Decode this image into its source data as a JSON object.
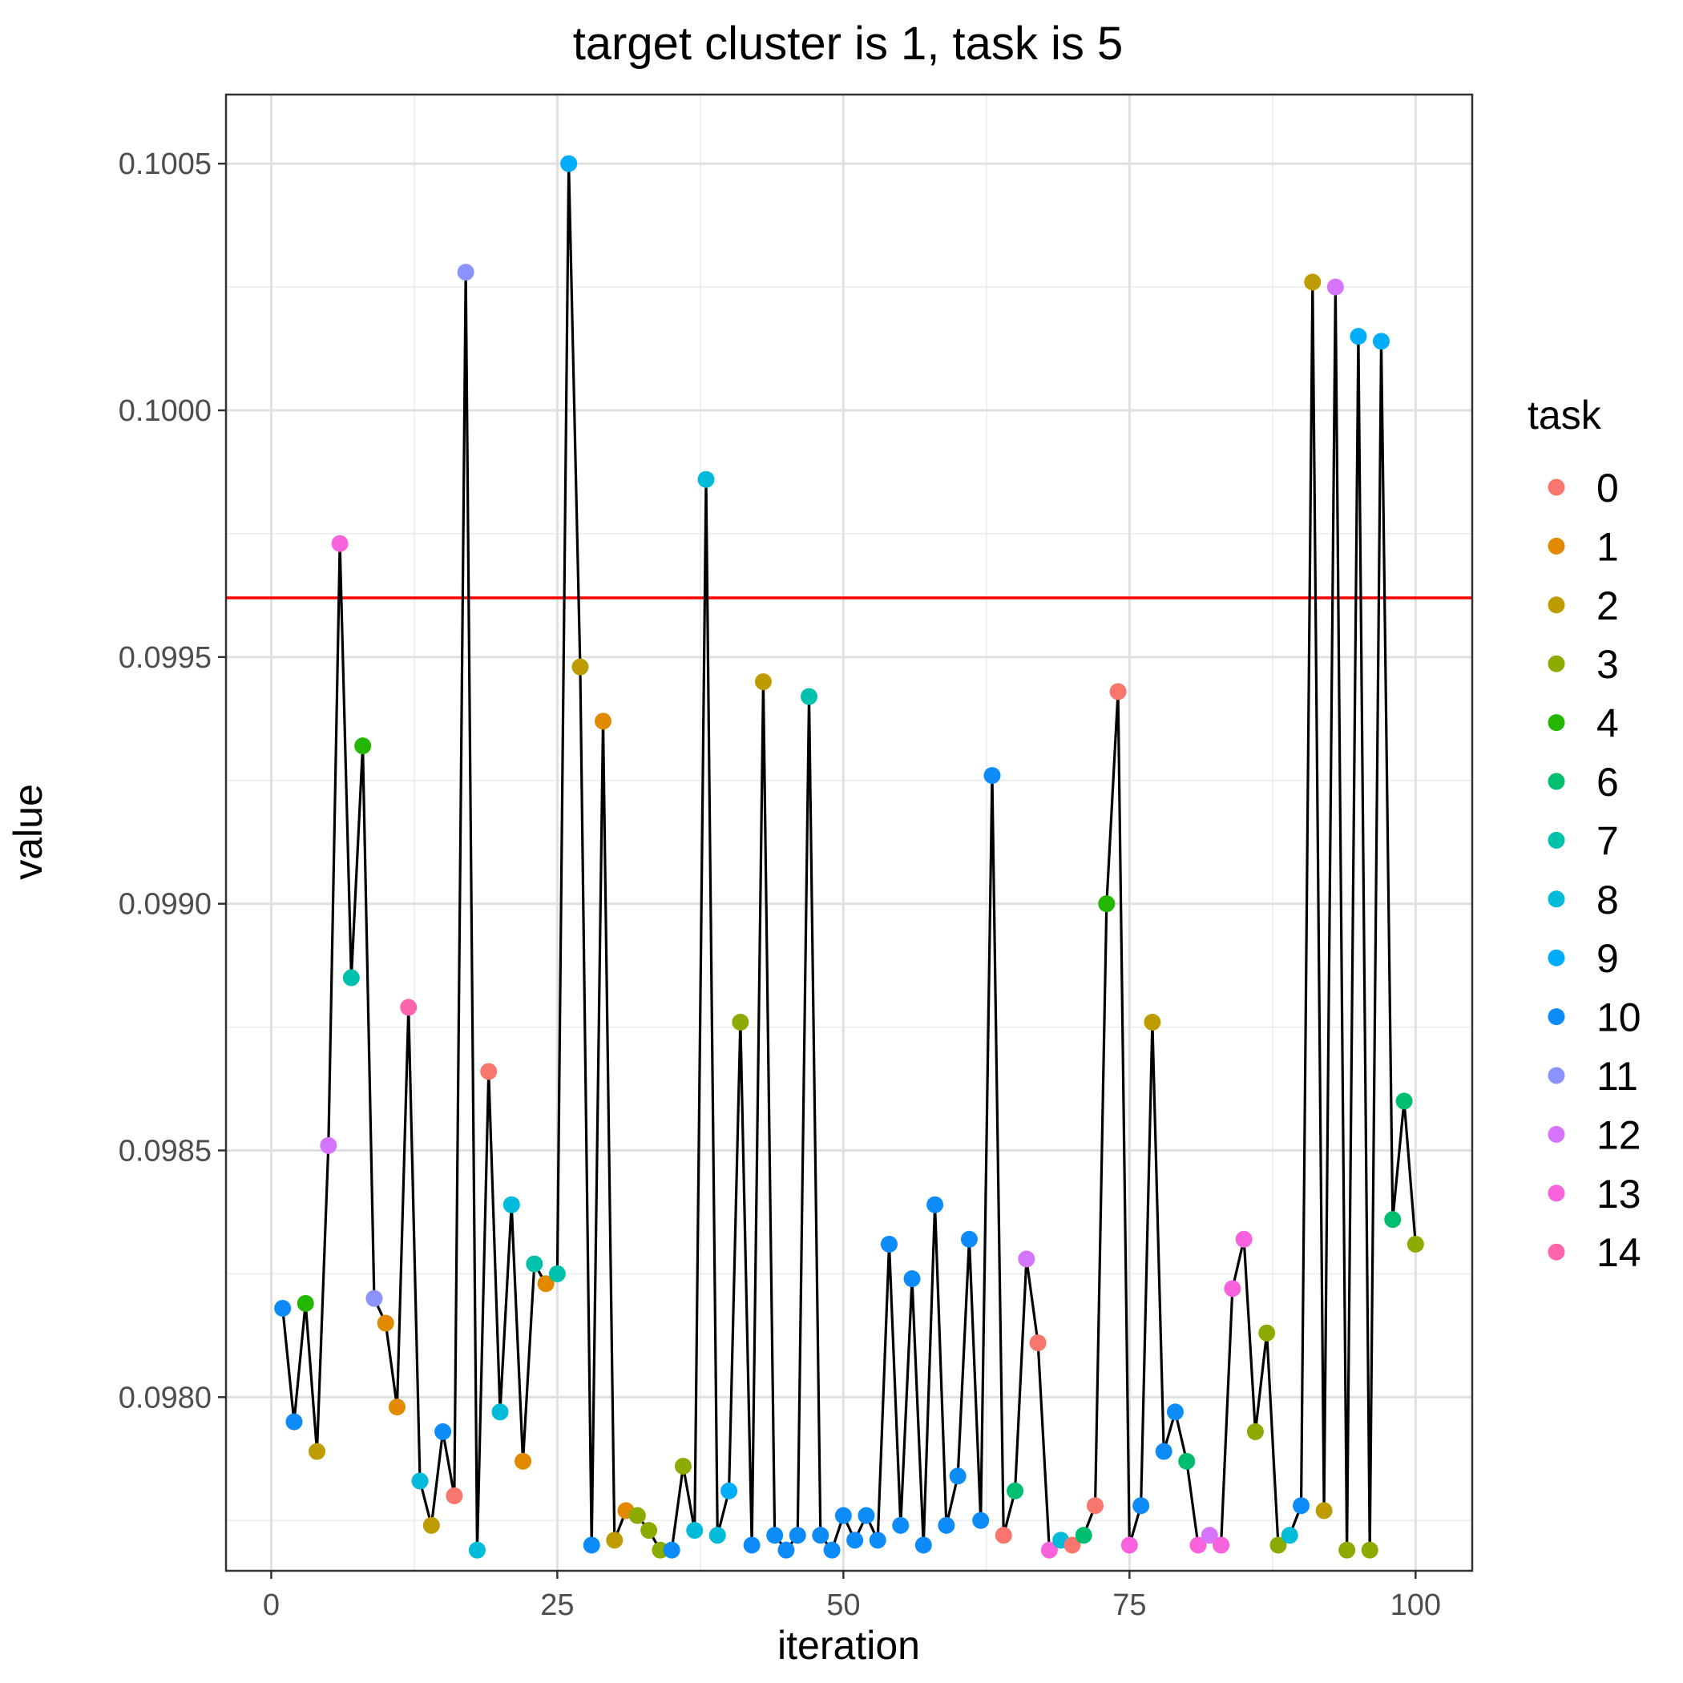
{
  "chart_data": {
    "type": "scatter",
    "title": "target cluster is 1, task is 5",
    "xlabel": "iteration",
    "ylabel": "value",
    "xlim": [
      -3.95,
      104.95
    ],
    "ylim": [
      0.097648,
      0.10064
    ],
    "x_ticks": [
      0,
      25,
      50,
      75,
      100
    ],
    "x_tick_labels": [
      "0",
      "25",
      "50",
      "75",
      "100"
    ],
    "y_ticks": [
      0.098,
      0.0985,
      0.099,
      0.0995,
      0.1,
      0.1005
    ],
    "y_tick_labels": [
      "0.0980",
      "0.0985",
      "0.0990",
      "0.0995",
      "0.1000",
      "0.1005"
    ],
    "grid": true,
    "reference_line": {
      "y": 0.09962,
      "color": "#FF0000"
    },
    "line_color": "#000000",
    "legend": {
      "title": "task",
      "position": "right",
      "entries": [
        {
          "label": "0",
          "color": "#F8766D"
        },
        {
          "label": "1",
          "color": "#E18A00"
        },
        {
          "label": "2",
          "color": "#BE9C00"
        },
        {
          "label": "3",
          "color": "#8CAB00"
        },
        {
          "label": "4",
          "color": "#24B700"
        },
        {
          "label": "6",
          "color": "#00BE70"
        },
        {
          "label": "7",
          "color": "#00C1AB"
        },
        {
          "label": "8",
          "color": "#00BBDA"
        },
        {
          "label": "9",
          "color": "#00ACFC"
        },
        {
          "label": "10",
          "color": "#0D8BF8"
        },
        {
          "label": "11",
          "color": "#8B93FF"
        },
        {
          "label": "12",
          "color": "#D575FE"
        },
        {
          "label": "13",
          "color": "#F962DD"
        },
        {
          "label": "14",
          "color": "#FF65AC"
        }
      ]
    },
    "points": [
      [
        1,
        0.09818,
        "10"
      ],
      [
        2,
        0.09795,
        "10"
      ],
      [
        3,
        0.09819,
        "4"
      ],
      [
        4,
        0.09789,
        "2"
      ],
      [
        5,
        0.09851,
        "12"
      ],
      [
        6,
        0.09973,
        "13"
      ],
      [
        7,
        0.09885,
        "7"
      ],
      [
        8,
        0.09932,
        "4"
      ],
      [
        9,
        0.0982,
        "11"
      ],
      [
        10,
        0.09815,
        "1"
      ],
      [
        11,
        0.09798,
        "1"
      ],
      [
        12,
        0.09879,
        "14"
      ],
      [
        13,
        0.09783,
        "8"
      ],
      [
        14,
        0.09774,
        "2"
      ],
      [
        15,
        0.09793,
        "10"
      ],
      [
        16,
        0.0978,
        "0"
      ],
      [
        17,
        0.10028,
        "11"
      ],
      [
        18,
        0.09769,
        "8"
      ],
      [
        19,
        0.09866,
        "0"
      ],
      [
        20,
        0.09797,
        "8"
      ],
      [
        21,
        0.09839,
        "8"
      ],
      [
        22,
        0.09787,
        "1"
      ],
      [
        23,
        0.09827,
        "7"
      ],
      [
        24,
        0.09823,
        "1"
      ],
      [
        25,
        0.09825,
        "7"
      ],
      [
        26,
        0.1005,
        "9"
      ],
      [
        27,
        0.09948,
        "2"
      ],
      [
        28,
        0.0977,
        "10"
      ],
      [
        29,
        0.09937,
        "1"
      ],
      [
        30,
        0.09771,
        "2"
      ],
      [
        31,
        0.09777,
        "1"
      ],
      [
        32,
        0.09776,
        "3"
      ],
      [
        33,
        0.09773,
        "3"
      ],
      [
        34,
        0.09769,
        "3"
      ],
      [
        35,
        0.09769,
        "10"
      ],
      [
        36,
        0.09786,
        "3"
      ],
      [
        37,
        0.09773,
        "8"
      ],
      [
        38,
        0.09986,
        "8"
      ],
      [
        39,
        0.09772,
        "8"
      ],
      [
        40,
        0.09781,
        "9"
      ],
      [
        41,
        0.09876,
        "3"
      ],
      [
        42,
        0.0977,
        "10"
      ],
      [
        43,
        0.09945,
        "2"
      ],
      [
        44,
        0.09772,
        "10"
      ],
      [
        45,
        0.09769,
        "10"
      ],
      [
        46,
        0.09772,
        "10"
      ],
      [
        47,
        0.09942,
        "7"
      ],
      [
        48,
        0.09772,
        "10"
      ],
      [
        49,
        0.09769,
        "10"
      ],
      [
        50,
        0.09776,
        "10"
      ],
      [
        51,
        0.09771,
        "10"
      ],
      [
        52,
        0.09776,
        "10"
      ],
      [
        53,
        0.09771,
        "10"
      ],
      [
        54,
        0.09831,
        "10"
      ],
      [
        55,
        0.09774,
        "10"
      ],
      [
        56,
        0.09824,
        "10"
      ],
      [
        57,
        0.0977,
        "10"
      ],
      [
        58,
        0.09839,
        "10"
      ],
      [
        59,
        0.09774,
        "10"
      ],
      [
        60,
        0.09784,
        "10"
      ],
      [
        61,
        0.09832,
        "10"
      ],
      [
        62,
        0.09775,
        "10"
      ],
      [
        63,
        0.09926,
        "10"
      ],
      [
        64,
        0.09772,
        "0"
      ],
      [
        65,
        0.09781,
        "6"
      ],
      [
        66,
        0.09828,
        "12"
      ],
      [
        67,
        0.09811,
        "0"
      ],
      [
        68,
        0.09769,
        "13"
      ],
      [
        69,
        0.09771,
        "8"
      ],
      [
        70,
        0.0977,
        "0"
      ],
      [
        71,
        0.09772,
        "6"
      ],
      [
        72,
        0.09778,
        "0"
      ],
      [
        73,
        0.099,
        "4"
      ],
      [
        74,
        0.09943,
        "0"
      ],
      [
        75,
        0.0977,
        "13"
      ],
      [
        76,
        0.09778,
        "10"
      ],
      [
        77,
        0.09876,
        "2"
      ],
      [
        78,
        0.09789,
        "10"
      ],
      [
        79,
        0.09797,
        "10"
      ],
      [
        80,
        0.09787,
        "6"
      ],
      [
        81,
        0.0977,
        "13"
      ],
      [
        82,
        0.09772,
        "12"
      ],
      [
        83,
        0.0977,
        "13"
      ],
      [
        84,
        0.09822,
        "13"
      ],
      [
        85,
        0.09832,
        "13"
      ],
      [
        86,
        0.09793,
        "3"
      ],
      [
        87,
        0.09813,
        "3"
      ],
      [
        88,
        0.0977,
        "3"
      ],
      [
        89,
        0.09772,
        "8"
      ],
      [
        90,
        0.09778,
        "10"
      ],
      [
        91,
        0.10026,
        "2"
      ],
      [
        92,
        0.09777,
        "2"
      ],
      [
        93,
        0.10025,
        "12"
      ],
      [
        94,
        0.09769,
        "3"
      ],
      [
        95,
        0.10015,
        "9"
      ],
      [
        96,
        0.09769,
        "3"
      ],
      [
        97,
        0.10014,
        "9"
      ],
      [
        98,
        0.09836,
        "6"
      ],
      [
        99,
        0.0986,
        "6"
      ],
      [
        100,
        0.09831,
        "3"
      ]
    ]
  }
}
